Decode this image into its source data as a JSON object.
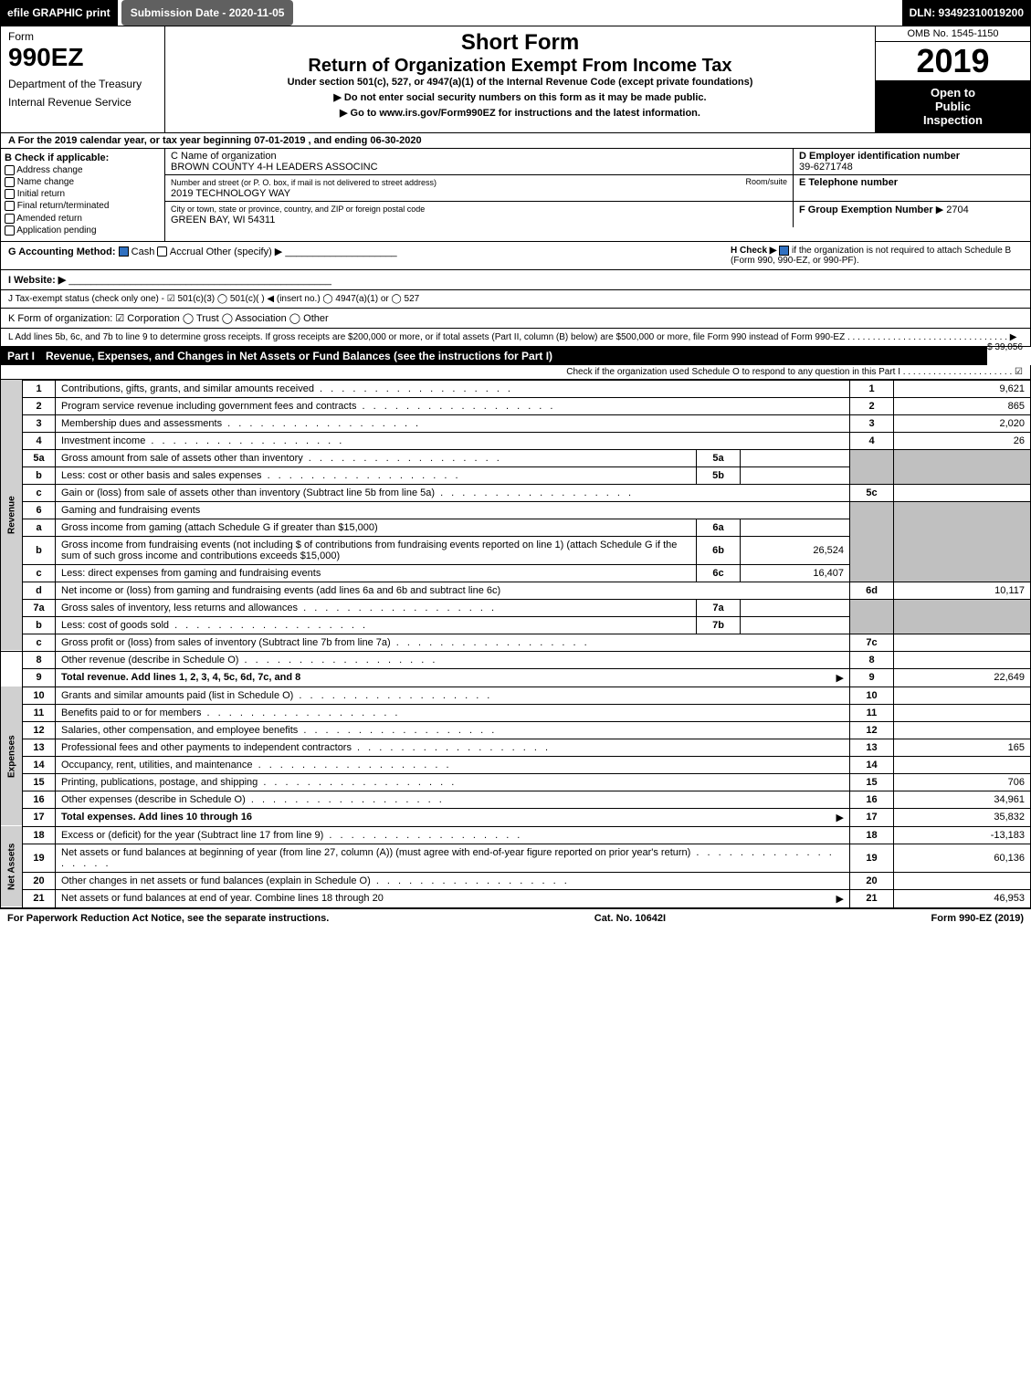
{
  "top": {
    "efile": "efile GRAPHIC print",
    "submission": "Submission Date - 2020-11-05",
    "dln": "DLN: 93492310019200"
  },
  "header": {
    "form_label": "Form",
    "form_990ez": "990EZ",
    "dept1": "Department of the Treasury",
    "dept2": "Internal Revenue Service",
    "short_form": "Short Form",
    "return_title": "Return of Organization Exempt From Income Tax",
    "subtitle": "Under section 501(c), 527, or 4947(a)(1) of the Internal Revenue Code (except private foundations)",
    "arrow1": "▶ Do not enter social security numbers on this form as it may be made public.",
    "arrow2": "▶ Go to www.irs.gov/Form990EZ for instructions and the latest information.",
    "omb": "OMB No. 1545-1150",
    "year": "2019",
    "open1": "Open to",
    "open2": "Public",
    "open3": "Inspection"
  },
  "periodA": "A  For the 2019 calendar year, or tax year beginning 07-01-2019 , and ending 06-30-2020",
  "boxB": {
    "label": "B  Check if applicable:",
    "items": [
      "Address change",
      "Name change",
      "Initial return",
      "Final return/terminated",
      "Amended return",
      "Application pending"
    ]
  },
  "boxC": {
    "label": "C Name of organization",
    "name": "BROWN COUNTY 4-H LEADERS ASSOCINC",
    "addr_label": "Number and street (or P. O. box, if mail is not delivered to street address)",
    "room_label": "Room/suite",
    "addr": "2019 TECHNOLOGY WAY",
    "city_label": "City or town, state or province, country, and ZIP or foreign postal code",
    "city": "GREEN BAY, WI  54311"
  },
  "boxD": {
    "label": "D Employer identification number",
    "value": "39-6271748"
  },
  "boxE": {
    "label": "E Telephone number"
  },
  "boxF": {
    "label": "F Group Exemption Number",
    "value": "▶ 2704"
  },
  "rowG": {
    "label": "G Accounting Method:",
    "cash": "Cash",
    "accrual": "Accrual",
    "other": "Other (specify) ▶"
  },
  "rowH": {
    "label": "H  Check ▶",
    "text1": "if the organization is not required to attach Schedule B",
    "text2": "(Form 990, 990-EZ, or 990-PF)."
  },
  "rowI": "I Website: ▶",
  "rowJ": "J Tax-exempt status (check only one) - ☑ 501(c)(3)  ◯ 501(c)( ) ◀ (insert no.)  ◯ 4947(a)(1) or  ◯ 527",
  "rowK": "K Form of organization:  ☑ Corporation  ◯ Trust  ◯ Association  ◯ Other",
  "rowL": {
    "text": "L Add lines 5b, 6c, and 7b to line 9 to determine gross receipts. If gross receipts are $200,000 or more, or if total assets (Part II, column (B) below) are $500,000 or more, file Form 990 instead of Form 990-EZ . . . . . . . . . . . . . . . . . . . . . . . . . . . . . . . . ▶",
    "value": "$ 39,056"
  },
  "part1": {
    "label": "Part I",
    "title": "Revenue, Expenses, and Changes in Net Assets or Fund Balances (see the instructions for Part I)",
    "sub": "Check if the organization used Schedule O to respond to any question in this Part I . . . . . . . . . . . . . . . . . . . . . . ☑"
  },
  "side_labels": {
    "revenue": "Revenue",
    "expenses": "Expenses",
    "netassets": "Net Assets"
  },
  "lines": {
    "l1": {
      "n": "1",
      "d": "Contributions, gifts, grants, and similar amounts received",
      "mn": "1",
      "mv": "9,621"
    },
    "l2": {
      "n": "2",
      "d": "Program service revenue including government fees and contracts",
      "mn": "2",
      "mv": "865"
    },
    "l3": {
      "n": "3",
      "d": "Membership dues and assessments",
      "mn": "3",
      "mv": "2,020"
    },
    "l4": {
      "n": "4",
      "d": "Investment income",
      "mn": "4",
      "mv": "26"
    },
    "l5a": {
      "n": "5a",
      "d": "Gross amount from sale of assets other than inventory",
      "sn": "5a",
      "sv": ""
    },
    "l5b": {
      "n": "b",
      "d": "Less: cost or other basis and sales expenses",
      "sn": "5b",
      "sv": ""
    },
    "l5c": {
      "n": "c",
      "d": "Gain or (loss) from sale of assets other than inventory (Subtract line 5b from line 5a)",
      "mn": "5c",
      "mv": ""
    },
    "l6": {
      "n": "6",
      "d": "Gaming and fundraising events"
    },
    "l6a": {
      "n": "a",
      "d": "Gross income from gaming (attach Schedule G if greater than $15,000)",
      "sn": "6a",
      "sv": ""
    },
    "l6b": {
      "n": "b",
      "d": "Gross income from fundraising events (not including $                       of contributions from fundraising events reported on line 1) (attach Schedule G if the sum of such gross income and contributions exceeds $15,000)",
      "sn": "6b",
      "sv": "26,524"
    },
    "l6c": {
      "n": "c",
      "d": "Less: direct expenses from gaming and fundraising events",
      "sn": "6c",
      "sv": "16,407"
    },
    "l6d": {
      "n": "d",
      "d": "Net income or (loss) from gaming and fundraising events (add lines 6a and 6b and subtract line 6c)",
      "mn": "6d",
      "mv": "10,117"
    },
    "l7a": {
      "n": "7a",
      "d": "Gross sales of inventory, less returns and allowances",
      "sn": "7a",
      "sv": ""
    },
    "l7b": {
      "n": "b",
      "d": "Less: cost of goods sold",
      "sn": "7b",
      "sv": ""
    },
    "l7c": {
      "n": "c",
      "d": "Gross profit or (loss) from sales of inventory (Subtract line 7b from line 7a)",
      "mn": "7c",
      "mv": ""
    },
    "l8": {
      "n": "8",
      "d": "Other revenue (describe in Schedule O)",
      "mn": "8",
      "mv": ""
    },
    "l9": {
      "n": "9",
      "d": "Total revenue. Add lines 1, 2, 3, 4, 5c, 6d, 7c, and 8",
      "mn": "9",
      "mv": "22,649",
      "arrow": "▶"
    },
    "l10": {
      "n": "10",
      "d": "Grants and similar amounts paid (list in Schedule O)",
      "mn": "10",
      "mv": ""
    },
    "l11": {
      "n": "11",
      "d": "Benefits paid to or for members",
      "mn": "11",
      "mv": ""
    },
    "l12": {
      "n": "12",
      "d": "Salaries, other compensation, and employee benefits",
      "mn": "12",
      "mv": ""
    },
    "l13": {
      "n": "13",
      "d": "Professional fees and other payments to independent contractors",
      "mn": "13",
      "mv": "165"
    },
    "l14": {
      "n": "14",
      "d": "Occupancy, rent, utilities, and maintenance",
      "mn": "14",
      "mv": ""
    },
    "l15": {
      "n": "15",
      "d": "Printing, publications, postage, and shipping",
      "mn": "15",
      "mv": "706"
    },
    "l16": {
      "n": "16",
      "d": "Other expenses (describe in Schedule O)",
      "mn": "16",
      "mv": "34,961"
    },
    "l17": {
      "n": "17",
      "d": "Total expenses. Add lines 10 through 16",
      "mn": "17",
      "mv": "35,832",
      "arrow": "▶"
    },
    "l18": {
      "n": "18",
      "d": "Excess or (deficit) for the year (Subtract line 17 from line 9)",
      "mn": "18",
      "mv": "-13,183"
    },
    "l19": {
      "n": "19",
      "d": "Net assets or fund balances at beginning of year (from line 27, column (A)) (must agree with end-of-year figure reported on prior year's return)",
      "mn": "19",
      "mv": "60,136"
    },
    "l20": {
      "n": "20",
      "d": "Other changes in net assets or fund balances (explain in Schedule O)",
      "mn": "20",
      "mv": ""
    },
    "l21": {
      "n": "21",
      "d": "Net assets or fund balances at end of year. Combine lines 18 through 20",
      "mn": "21",
      "mv": "46,953",
      "arrow": "▶"
    }
  },
  "footer": {
    "left": "For Paperwork Reduction Act Notice, see the separate instructions.",
    "mid": "Cat. No. 10642I",
    "right": "Form 990-EZ (2019)"
  },
  "colors": {
    "black": "#000000",
    "grey": "#c0c0c0",
    "darkgrey": "#606060",
    "blue": "#3070c0"
  }
}
